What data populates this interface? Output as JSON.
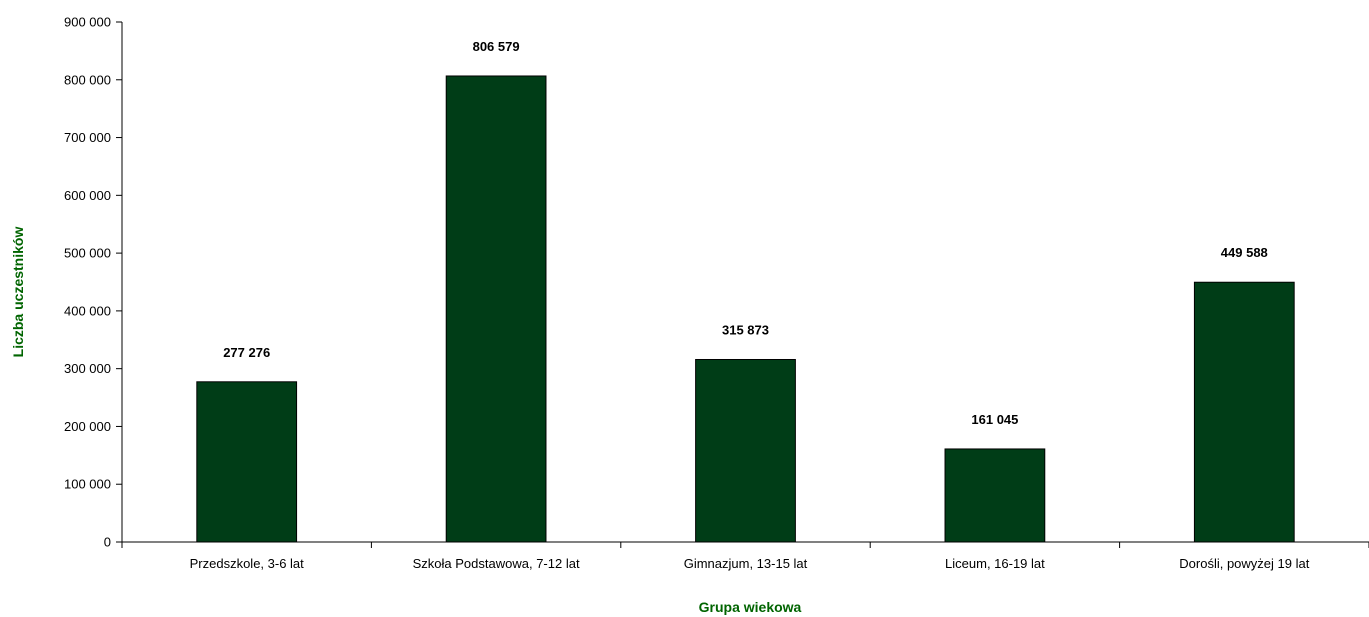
{
  "colors": {
    "bar_fill": "#003d17",
    "bar_stroke": "#000000",
    "axis": "#000000",
    "axis_title": "#006400",
    "text": "#000000"
  },
  "chart_data": {
    "type": "bar",
    "title": "",
    "xlabel": "Grupa wiekowa",
    "ylabel": "Liczba uczestników",
    "categories": [
      "Przedszkole, 3-6 lat",
      "Szkoła Podstawowa, 7-12 lat",
      "Gimnazjum, 13-15 lat",
      "Liceum, 16-19 lat",
      "Dorośli, powyżej 19 lat"
    ],
    "values": [
      277276,
      806579,
      315873,
      161045,
      449588
    ],
    "value_labels": [
      "277 276",
      "806 579",
      "315 873",
      "161 045",
      "449 588"
    ],
    "ylim": [
      0,
      900000
    ],
    "yticks": [
      0,
      100000,
      200000,
      300000,
      400000,
      500000,
      600000,
      700000,
      800000,
      900000
    ],
    "ytick_labels": [
      "0",
      "100 000",
      "200 000",
      "300 000",
      "400 000",
      "500 000",
      "600 000",
      "700 000",
      "800 000",
      "900 000"
    ],
    "grid": false,
    "legend": "none"
  }
}
